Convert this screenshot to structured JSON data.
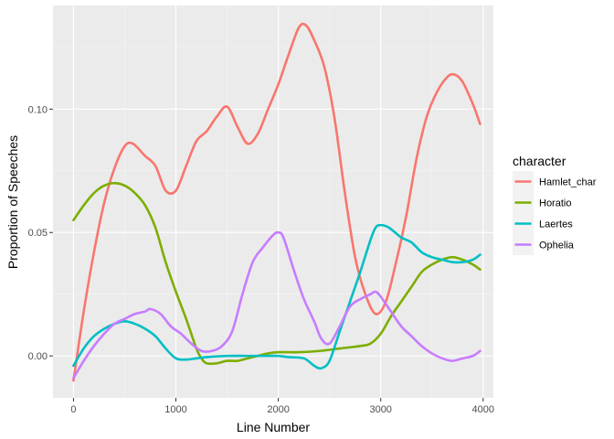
{
  "chart_data": {
    "type": "line",
    "title": "",
    "xlabel": "Line Number",
    "ylabel": "Proportion of Speeches",
    "xlim": [
      -200,
      4100
    ],
    "ylim": [
      -0.017,
      0.142
    ],
    "x_ticks": [
      0,
      1000,
      2000,
      3000,
      4000
    ],
    "x_tick_labels": [
      "0",
      "1000",
      "2000",
      "3000",
      "4000"
    ],
    "y_ticks": [
      0.0,
      0.05,
      0.1
    ],
    "y_tick_labels": [
      "0.00",
      "0.05",
      "0.10"
    ],
    "grid": true,
    "legend": {
      "title": "character",
      "position": "right"
    },
    "series": [
      {
        "name": "Hamlet_char",
        "color": "#F8766D",
        "points": [
          [
            0,
            -0.01
          ],
          [
            100,
            0.018
          ],
          [
            200,
            0.042
          ],
          [
            300,
            0.062
          ],
          [
            400,
            0.076
          ],
          [
            500,
            0.085
          ],
          [
            580,
            0.086
          ],
          [
            700,
            0.081
          ],
          [
            800,
            0.077
          ],
          [
            900,
            0.067
          ],
          [
            1000,
            0.067
          ],
          [
            1100,
            0.077
          ],
          [
            1200,
            0.087
          ],
          [
            1300,
            0.091
          ],
          [
            1400,
            0.097
          ],
          [
            1500,
            0.101
          ],
          [
            1600,
            0.093
          ],
          [
            1700,
            0.086
          ],
          [
            1800,
            0.09
          ],
          [
            1900,
            0.1
          ],
          [
            2000,
            0.11
          ],
          [
            2100,
            0.122
          ],
          [
            2200,
            0.133
          ],
          [
            2270,
            0.134
          ],
          [
            2350,
            0.128
          ],
          [
            2450,
            0.117
          ],
          [
            2550,
            0.096
          ],
          [
            2650,
            0.066
          ],
          [
            2750,
            0.04
          ],
          [
            2850,
            0.025
          ],
          [
            2950,
            0.017
          ],
          [
            3050,
            0.022
          ],
          [
            3150,
            0.038
          ],
          [
            3250,
            0.057
          ],
          [
            3350,
            0.08
          ],
          [
            3450,
            0.097
          ],
          [
            3550,
            0.107
          ],
          [
            3650,
            0.113
          ],
          [
            3720,
            0.114
          ],
          [
            3800,
            0.111
          ],
          [
            3900,
            0.102
          ],
          [
            3970,
            0.094
          ]
        ]
      },
      {
        "name": "Horatio",
        "color": "#7CAE00",
        "points": [
          [
            0,
            0.055
          ],
          [
            100,
            0.061
          ],
          [
            200,
            0.066
          ],
          [
            300,
            0.069
          ],
          [
            400,
            0.07
          ],
          [
            500,
            0.069
          ],
          [
            600,
            0.066
          ],
          [
            700,
            0.061
          ],
          [
            800,
            0.052
          ],
          [
            900,
            0.038
          ],
          [
            1000,
            0.026
          ],
          [
            1100,
            0.015
          ],
          [
            1200,
            0.003
          ],
          [
            1250,
            -0.001
          ],
          [
            1300,
            -0.003
          ],
          [
            1400,
            -0.003
          ],
          [
            1500,
            -0.002
          ],
          [
            1600,
            -0.002
          ],
          [
            1700,
            -0.001
          ],
          [
            1800,
            0.0
          ],
          [
            1900,
            0.001
          ],
          [
            2000,
            0.0015
          ],
          [
            2200,
            0.0015
          ],
          [
            2400,
            0.002
          ],
          [
            2600,
            0.003
          ],
          [
            2800,
            0.004
          ],
          [
            2900,
            0.005
          ],
          [
            3000,
            0.009
          ],
          [
            3100,
            0.016
          ],
          [
            3200,
            0.022
          ],
          [
            3300,
            0.028
          ],
          [
            3400,
            0.034
          ],
          [
            3500,
            0.037
          ],
          [
            3600,
            0.039
          ],
          [
            3700,
            0.04
          ],
          [
            3800,
            0.039
          ],
          [
            3900,
            0.037
          ],
          [
            3970,
            0.035
          ]
        ]
      },
      {
        "name": "Laertes",
        "color": "#00BFC4",
        "points": [
          [
            0,
            -0.004
          ],
          [
            100,
            0.003
          ],
          [
            200,
            0.008
          ],
          [
            300,
            0.011
          ],
          [
            400,
            0.013
          ],
          [
            500,
            0.014
          ],
          [
            600,
            0.013
          ],
          [
            700,
            0.011
          ],
          [
            800,
            0.008
          ],
          [
            900,
            0.003
          ],
          [
            1000,
            -0.001
          ],
          [
            1100,
            -0.0015
          ],
          [
            1200,
            -0.001
          ],
          [
            1300,
            -0.0005
          ],
          [
            1500,
            0.0
          ],
          [
            1700,
            0.0
          ],
          [
            1900,
            0.0
          ],
          [
            2000,
            0.0
          ],
          [
            2100,
            -0.0005
          ],
          [
            2250,
            -0.001
          ],
          [
            2350,
            -0.004
          ],
          [
            2420,
            -0.005
          ],
          [
            2500,
            -0.002
          ],
          [
            2600,
            0.01
          ],
          [
            2700,
            0.022
          ],
          [
            2800,
            0.034
          ],
          [
            2900,
            0.047
          ],
          [
            2950,
            0.052
          ],
          [
            3000,
            0.053
          ],
          [
            3080,
            0.052
          ],
          [
            3200,
            0.048
          ],
          [
            3300,
            0.046
          ],
          [
            3400,
            0.042
          ],
          [
            3500,
            0.04
          ],
          [
            3600,
            0.039
          ],
          [
            3700,
            0.038
          ],
          [
            3800,
            0.038
          ],
          [
            3900,
            0.039
          ],
          [
            3970,
            0.041
          ]
        ]
      },
      {
        "name": "Ophelia",
        "color": "#C77CFF",
        "points": [
          [
            0,
            -0.009
          ],
          [
            100,
            -0.002
          ],
          [
            200,
            0.004
          ],
          [
            300,
            0.009
          ],
          [
            400,
            0.013
          ],
          [
            500,
            0.015
          ],
          [
            600,
            0.017
          ],
          [
            700,
            0.018
          ],
          [
            750,
            0.019
          ],
          [
            850,
            0.017
          ],
          [
            950,
            0.012
          ],
          [
            1050,
            0.009
          ],
          [
            1150,
            0.005
          ],
          [
            1250,
            0.002
          ],
          [
            1350,
            0.002
          ],
          [
            1450,
            0.004
          ],
          [
            1550,
            0.01
          ],
          [
            1650,
            0.025
          ],
          [
            1750,
            0.038
          ],
          [
            1850,
            0.044
          ],
          [
            1950,
            0.049
          ],
          [
            2000,
            0.05
          ],
          [
            2050,
            0.048
          ],
          [
            2150,
            0.035
          ],
          [
            2250,
            0.023
          ],
          [
            2350,
            0.014
          ],
          [
            2420,
            0.007
          ],
          [
            2500,
            0.005
          ],
          [
            2600,
            0.012
          ],
          [
            2700,
            0.02
          ],
          [
            2800,
            0.023
          ],
          [
            2900,
            0.025
          ],
          [
            2950,
            0.026
          ],
          [
            3000,
            0.024
          ],
          [
            3100,
            0.018
          ],
          [
            3200,
            0.012
          ],
          [
            3300,
            0.008
          ],
          [
            3400,
            0.004
          ],
          [
            3500,
            0.001
          ],
          [
            3600,
            -0.001
          ],
          [
            3700,
            -0.002
          ],
          [
            3800,
            -0.001
          ],
          [
            3900,
            0.0
          ],
          [
            3970,
            0.002
          ]
        ]
      }
    ]
  }
}
